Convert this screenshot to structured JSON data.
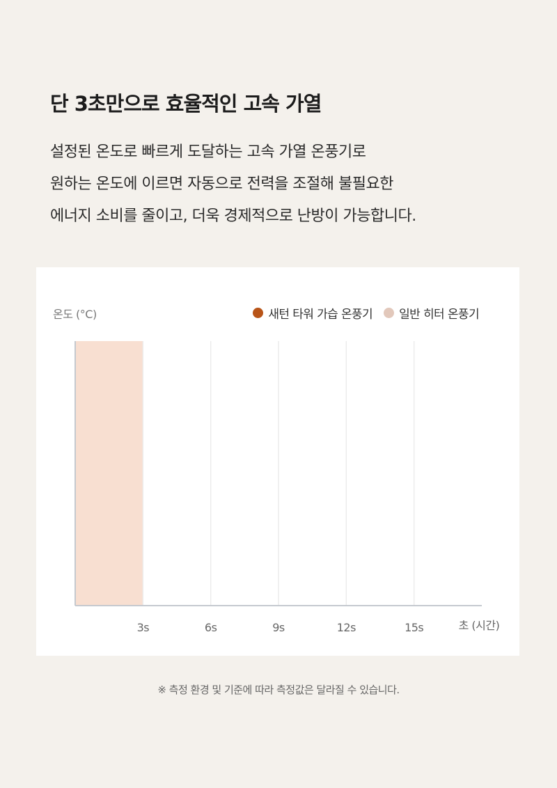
{
  "page": {
    "headline": "단 3초만으로 효율적인 고속 가열",
    "description_lines": [
      "설정된 온도로 빠르게 도달하는 고속 가열 온풍기로",
      "원하는 온도에 이르면 자동으로 전력을 조절해 불필요한",
      "에너지 소비를 줄이고, 더욱 경제적으로 난방이 가능합니다."
    ],
    "footnote": "※ 측정 환경 및 기준에 따라 측정값은 달라질 수 있습니다."
  },
  "chart_data": {
    "type": "bar",
    "title": "",
    "ylabel": "온도 (°C)",
    "xlabel": "초 (시간)",
    "x_ticks": [
      "3s",
      "6s",
      "9s",
      "12s",
      "15s"
    ],
    "x_range": [
      0,
      18
    ],
    "y_range": [
      0,
      1
    ],
    "grid": "vertical",
    "legend_position": "top-right",
    "series": [
      {
        "name": "새턴 타워 가습 온풍기",
        "color": "#b85418",
        "values": []
      },
      {
        "name": "일반 히터 온풍기",
        "color": "#e2c8bb",
        "values": []
      }
    ],
    "highlight_band": {
      "x_start": 0,
      "x_end": 3,
      "color": "#f8dfd1"
    }
  }
}
